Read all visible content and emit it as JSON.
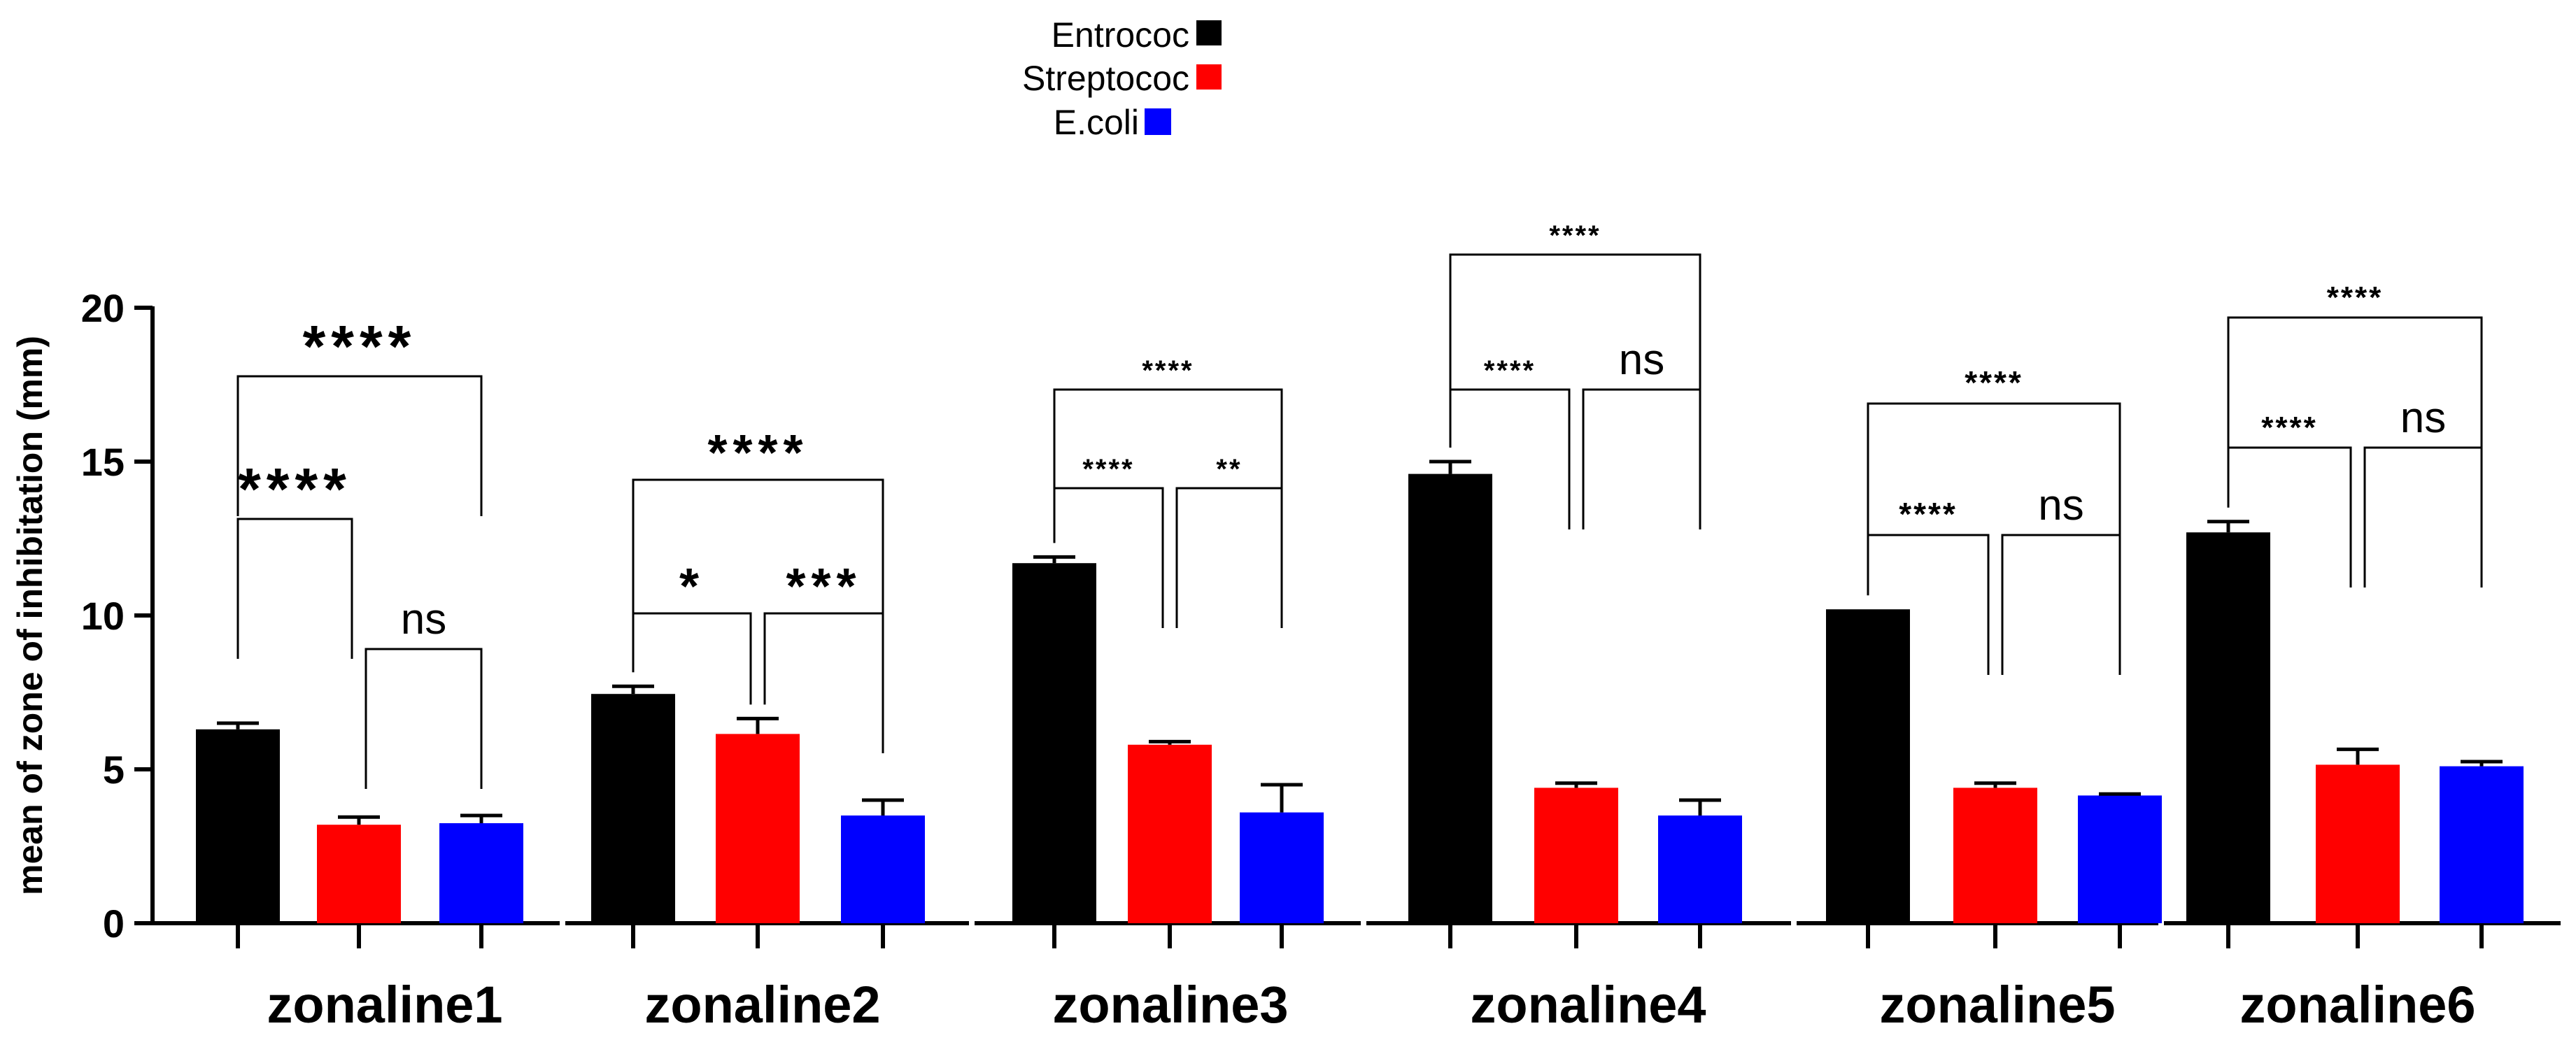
{
  "chart_data": {
    "type": "bar",
    "ylabel": "mean of zone of inhibitation (mm)",
    "xlabel": "",
    "ylim": [
      0,
      20
    ],
    "yticks": [
      "0",
      "5",
      "10",
      "15",
      "20"
    ],
    "legend_position": "top-center",
    "series": [
      {
        "name": "Entrococ",
        "color": "#000000"
      },
      {
        "name": "Streptococ",
        "color": "#ff0000"
      },
      {
        "name": "E.coli",
        "color": "#0000ff"
      }
    ],
    "groups": [
      {
        "label": "zonaline1",
        "values": [
          6.3,
          3.2,
          3.25
        ],
        "errors": [
          0.2,
          0.25,
          0.25
        ],
        "comparisons": [
          {
            "pair": [
              0,
              1
            ],
            "label": "****"
          },
          {
            "pair": [
              1,
              2
            ],
            "label": "ns"
          },
          {
            "pair": [
              0,
              2
            ],
            "label": "****"
          }
        ]
      },
      {
        "label": "zonaline2",
        "values": [
          7.45,
          6.15,
          3.5
        ],
        "errors": [
          0.25,
          0.5,
          0.5
        ],
        "comparisons": [
          {
            "pair": [
              0,
              1
            ],
            "label": "*"
          },
          {
            "pair": [
              1,
              2
            ],
            "label": "***"
          },
          {
            "pair": [
              0,
              2
            ],
            "label": "****"
          }
        ]
      },
      {
        "label": "zonaline3",
        "values": [
          11.7,
          5.8,
          3.6
        ],
        "errors": [
          0.2,
          0.1,
          0.9
        ],
        "comparisons": [
          {
            "pair": [
              0,
              1
            ],
            "label": "****"
          },
          {
            "pair": [
              1,
              2
            ],
            "label": "**"
          },
          {
            "pair": [
              0,
              2
            ],
            "label": "****"
          }
        ]
      },
      {
        "label": "zonaline4",
        "values": [
          14.6,
          4.4,
          3.5
        ],
        "errors": [
          0.4,
          0.15,
          0.5
        ],
        "comparisons": [
          {
            "pair": [
              0,
              1
            ],
            "label": "****"
          },
          {
            "pair": [
              1,
              2
            ],
            "label": "ns"
          },
          {
            "pair": [
              0,
              2
            ],
            "label": "****"
          }
        ]
      },
      {
        "label": "zonaline5",
        "values": [
          10.2,
          4.4,
          4.15
        ],
        "errors": [
          0.0,
          0.15,
          0.05
        ],
        "comparisons": [
          {
            "pair": [
              0,
              1
            ],
            "label": "****"
          },
          {
            "pair": [
              1,
              2
            ],
            "label": "ns"
          },
          {
            "pair": [
              0,
              2
            ],
            "label": "****"
          }
        ]
      },
      {
        "label": "zonaline6",
        "values": [
          12.7,
          5.15,
          5.1
        ],
        "errors": [
          0.35,
          0.5,
          0.15
        ],
        "comparisons": [
          {
            "pair": [
              0,
              1
            ],
            "label": "****"
          },
          {
            "pair": [
              1,
              2
            ],
            "label": "ns"
          },
          {
            "pair": [
              0,
              2
            ],
            "label": "****"
          }
        ]
      }
    ]
  }
}
